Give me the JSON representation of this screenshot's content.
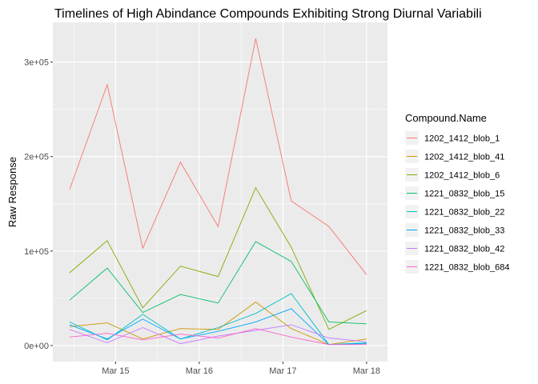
{
  "chart_data": {
    "type": "line",
    "title": "Timelines of  High Abindance Compounds Exhibiting Strong Diurnal Variabili",
    "xlabel": "",
    "ylabel": "Raw Response",
    "ylim": [
      -17000,
      342000
    ],
    "xlim": [
      0,
      16.0
    ],
    "grid": true,
    "legend_position": "right",
    "legend_title": "Compound.Name",
    "y_ticks": [
      {
        "value": 0,
        "label": "0e+00"
      },
      {
        "value": 100000,
        "label": "1e+05"
      },
      {
        "value": 200000,
        "label": "2e+05"
      },
      {
        "value": 300000,
        "label": "3e+05"
      }
    ],
    "x_ticks": [
      {
        "value": 3.0,
        "label": "Mar 15"
      },
      {
        "value": 7.0,
        "label": "Mar 16"
      },
      {
        "value": 11.0,
        "label": "Mar 17"
      },
      {
        "value": 15.0,
        "label": "Mar 18"
      }
    ],
    "x": [
      0.8,
      2.6,
      4.3,
      6.1,
      7.9,
      9.7,
      11.4,
      13.2,
      15.0
    ],
    "series": [
      {
        "name": "1202_1412_blob_1",
        "color": "#F8766D",
        "values": [
          165000,
          276000,
          103000,
          194000,
          126000,
          325000,
          153000,
          126000,
          75000
        ]
      },
      {
        "name": "1202_1412_blob_41",
        "color": "#CD9600",
        "values": [
          20000,
          24000,
          7000,
          18000,
          17000,
          46000,
          18000,
          1000,
          7000
        ]
      },
      {
        "name": "1202_1412_blob_6",
        "color": "#7CAE00",
        "values": [
          77000,
          111000,
          40000,
          84000,
          73000,
          167000,
          104000,
          17000,
          37000
        ]
      },
      {
        "name": "1221_0832_blob_15",
        "color": "#00BE67",
        "values": [
          48000,
          82000,
          35000,
          54000,
          45000,
          110000,
          89000,
          25000,
          23000
        ]
      },
      {
        "name": "1221_0832_blob_22",
        "color": "#00BFC4",
        "values": [
          25000,
          6000,
          33000,
          7000,
          19000,
          34000,
          55000,
          1000,
          3000
        ]
      },
      {
        "name": "1221_0832_blob_33",
        "color": "#00A9FF",
        "values": [
          22000,
          7000,
          28000,
          7000,
          15000,
          25000,
          39000,
          1000,
          2000
        ]
      },
      {
        "name": "1221_0832_blob_42",
        "color": "#C77CFF",
        "values": [
          17000,
          3000,
          19000,
          2000,
          10000,
          16000,
          22000,
          8000,
          4000
        ]
      },
      {
        "name": "1221_0832_blob_684",
        "color": "#FF61CC",
        "values": [
          9000,
          13000,
          6000,
          12000,
          8000,
          18000,
          9000,
          1000,
          1000
        ]
      }
    ]
  }
}
